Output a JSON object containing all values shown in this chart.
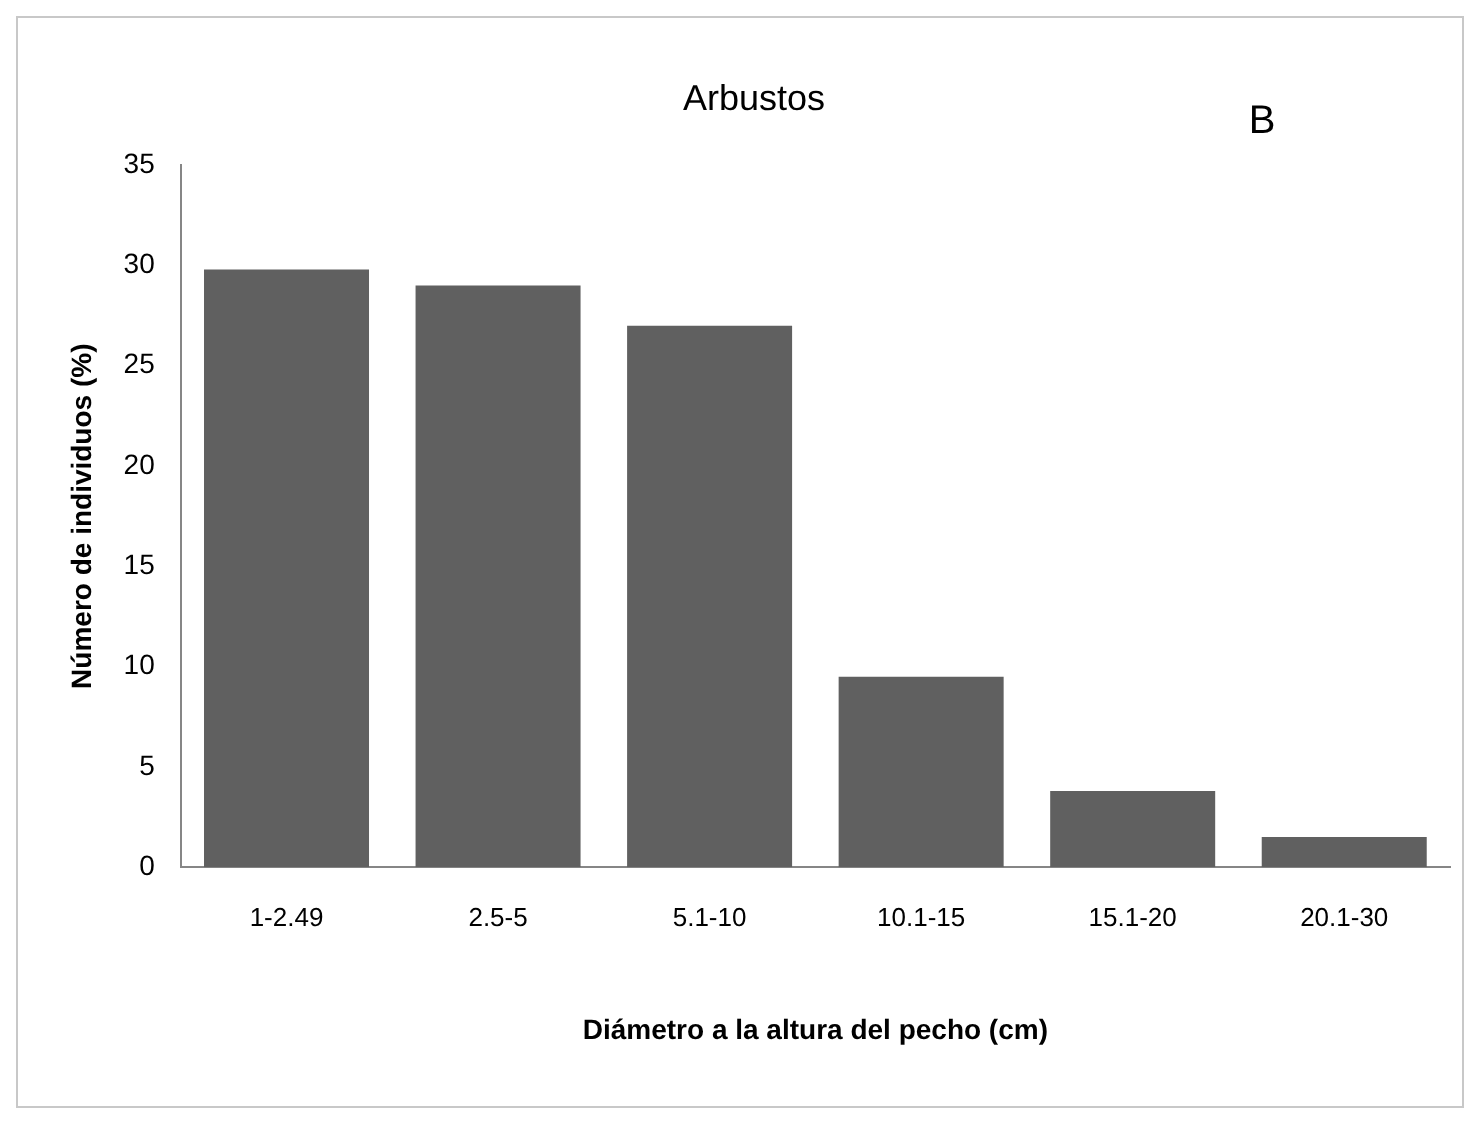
{
  "chart_data": {
    "type": "bar",
    "title": "Arbustos",
    "xlabel": "Diámetro a la altura del pecho (cm)",
    "ylabel": "Número de individuos (%)",
    "categories": [
      "1-2.49",
      "2.5-5",
      "5.1-10",
      "10.1-15",
      "15.1-20",
      "20.1-30"
    ],
    "values": [
      29.8,
      29.0,
      27.0,
      9.5,
      3.8,
      1.5
    ],
    "color": "#606060",
    "ylim": [
      0,
      35
    ],
    "yticks": [
      0,
      5,
      10,
      15,
      20,
      25,
      30,
      35
    ],
    "grid": false,
    "legend": false,
    "annotations": [
      "B"
    ]
  }
}
